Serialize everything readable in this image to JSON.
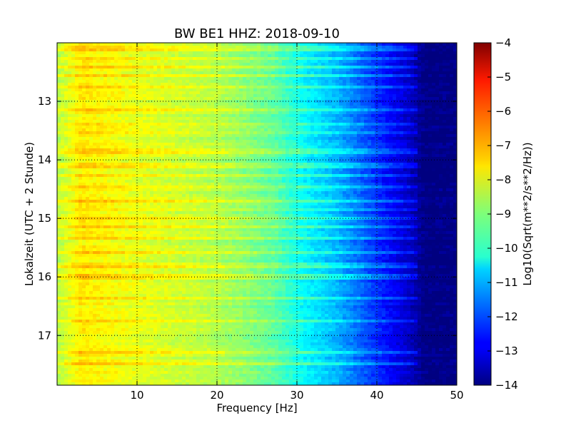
{
  "chart_data": {
    "type": "heatmap",
    "title": "BW BE1 HHZ: 2018-09-10",
    "xlabel": "Frequency [Hz]",
    "ylabel": "Lokalzeit (UTC + 2 Stunde)",
    "xlim": [
      0,
      50
    ],
    "ylim_top_to_bottom": [
      12.0,
      17.85
    ],
    "x_ticks": [
      10,
      20,
      30,
      40,
      50
    ],
    "y_ticks": [
      13,
      14,
      15,
      16,
      17
    ],
    "grid": "dotted",
    "colormap": "jet",
    "colorbar": {
      "label": "Log10(Sqrt(m**2/s**2/Hz))",
      "min": -14,
      "max": -4,
      "ticks": [
        -4,
        -5,
        -6,
        -7,
        -8,
        -9,
        -10,
        -11,
        -12,
        -13,
        -14
      ]
    },
    "spectral_profile": {
      "frequency_hz": [
        0,
        3,
        10,
        20,
        27,
        31,
        35,
        38,
        41,
        44,
        46,
        50
      ],
      "log10_amplitude": [
        -8.5,
        -7.6,
        -8.0,
        -8.5,
        -9.3,
        -10.3,
        -11.0,
        -11.8,
        -12.6,
        -13.3,
        -14.0,
        -14.0
      ]
    },
    "bright_lines_hour": [
      12.1,
      12.25,
      12.42,
      12.55,
      12.75,
      13.15,
      13.4,
      13.55,
      13.85,
      14.1,
      14.25,
      14.45,
      14.7,
      14.85,
      15.0,
      15.15,
      15.35,
      15.6,
      15.8,
      16.0,
      16.35,
      16.75,
      17.3,
      17.5
    ]
  }
}
